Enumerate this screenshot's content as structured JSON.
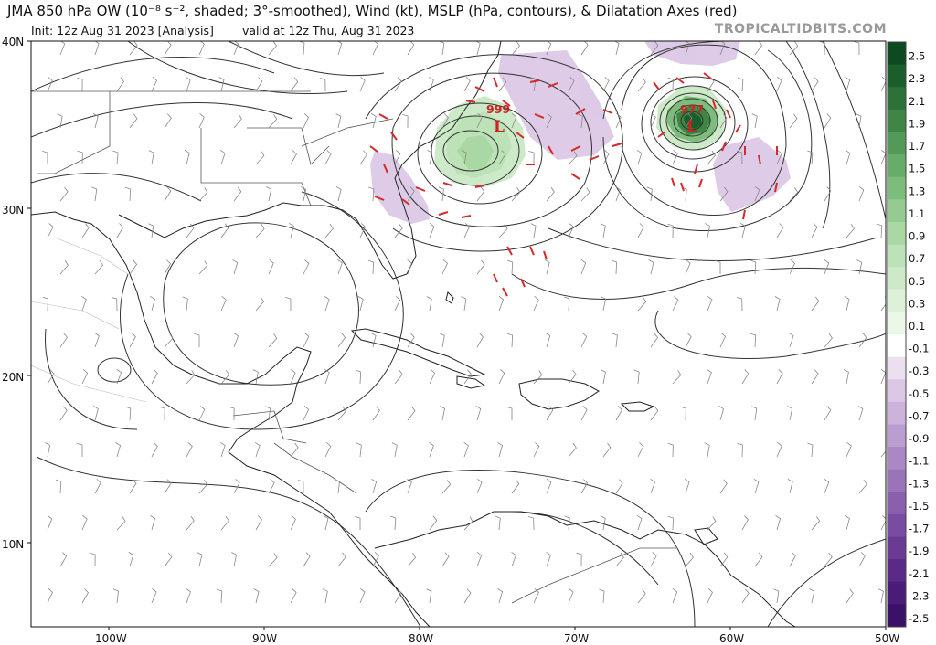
{
  "title": "JMA 850 hPa OW (10⁻⁸ s⁻², shaded; 3°-smoothed), Wind (kt), MSLP (hPa, contours), & Dilatation Axes (red)",
  "init": "Init: 12z Aug 31 2023   [Analysis]",
  "valid": "valid at 12z Thu, Aug 31 2023",
  "credit": "TROPICALTIDBITS.COM",
  "lat_labels": [
    "40N",
    "30N",
    "20N",
    "10N"
  ],
  "lon_labels": [
    "100W",
    "90W",
    "80W",
    "70W",
    "60W",
    "50W"
  ],
  "extent": {
    "lon_min": -105,
    "lon_max": -50,
    "lat_min": 5,
    "lat_max": 40
  },
  "colorbar": {
    "labels": [
      "2.5",
      "2.3",
      "2.1",
      "1.9",
      "1.7",
      "1.5",
      "1.3",
      "1.1",
      "0.9",
      "0.7",
      "0.5",
      "0.3",
      "0.1",
      "-0.1",
      "-0.3",
      "-0.5",
      "-0.7",
      "-0.9",
      "-1.1",
      "-1.3",
      "-1.5",
      "-1.7",
      "-1.9",
      "-2.1",
      "-2.3",
      "-2.5"
    ],
    "colors": [
      "#0d4a20",
      "#1a5e2c",
      "#2b7138",
      "#3e8546",
      "#529a57",
      "#67ad69",
      "#7dbd7c",
      "#93cb90",
      "#a9d8a4",
      "#bde2b7",
      "#cdeac8",
      "#dcf1d8",
      "#ebf8e8",
      "#ffffff",
      "#ece0f0",
      "#dcc8e6",
      "#ccb2dc",
      "#bb9dd1",
      "#ab88c5",
      "#9a73b9",
      "#8a5fad",
      "#7a4ca1",
      "#6a3a94",
      "#5a2a86",
      "#4a1c77",
      "#3b1067"
    ]
  },
  "lows": [
    {
      "pressure": "999",
      "letter": "L",
      "lon": -74.8,
      "lat": 34.4
    },
    {
      "pressure": "977",
      "letter": "L",
      "lon": -62.5,
      "lat": 35.0
    }
  ],
  "colors": {
    "dilatation": "#d42a2a",
    "contour": "#333333",
    "coast": "#222222",
    "border": "#555555"
  }
}
